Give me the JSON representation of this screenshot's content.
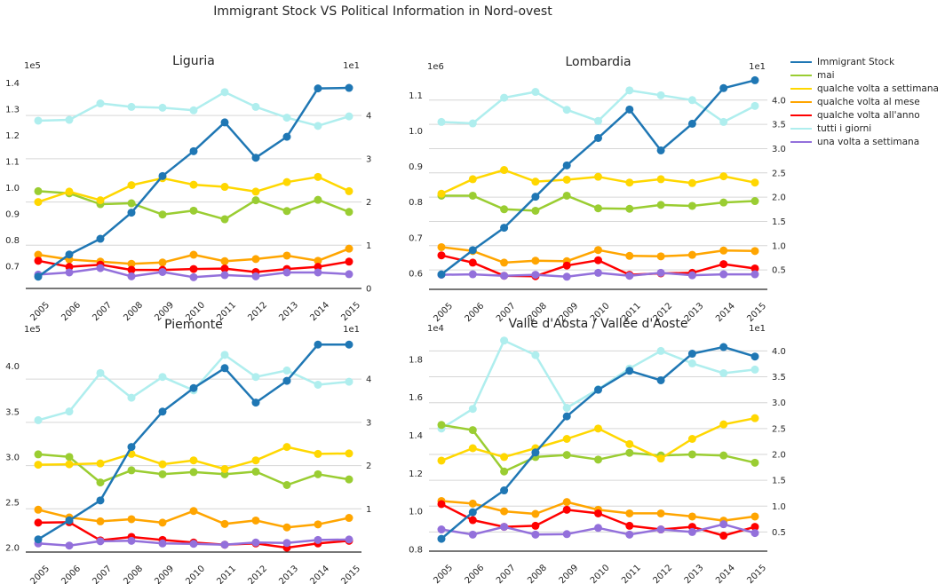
{
  "title": "Immigrant Stock VS Political Information in Nord-ovest",
  "legend": [
    {
      "label": "Immigrant Stock",
      "color": "#1f77b4"
    },
    {
      "label": "mai",
      "color": "#9acd32"
    },
    {
      "label": "qualche volta a settimana",
      "color": "#ffd700"
    },
    {
      "label": "qualche volta al mese",
      "color": "#ffa500"
    },
    {
      "label": "qualche volta all'anno",
      "color": "#ff0000"
    },
    {
      "label": "tutti i giorni",
      "color": "#afeeee"
    },
    {
      "label": "una volta a settimana",
      "color": "#9370db"
    }
  ],
  "chart_data": [
    {
      "type": "line",
      "title": "Liguria",
      "x": [
        "2005",
        "2006",
        "2007",
        "2008",
        "2009",
        "2010",
        "2011",
        "2012",
        "2013",
        "2014",
        "2015"
      ],
      "left_axis": {
        "exponent_label": "1e5",
        "ylim": [
          0.615,
          1.45
        ],
        "ticks": [
          0.7,
          0.8,
          0.9,
          1.0,
          1.1,
          1.2,
          1.3,
          1.4
        ],
        "tick_labels": [
          "0.7",
          "0.8",
          "0.9",
          "1.0",
          "1.1",
          "1.2",
          "1.3",
          "1.4"
        ]
      },
      "right_axis": {
        "exponent_label": "1e1",
        "ylim": [
          0,
          5.05
        ],
        "ticks": [
          0,
          1,
          2,
          3,
          4
        ],
        "tick_labels": [
          "0",
          "1",
          "2",
          "3",
          "4"
        ]
      },
      "left_series": [
        {
          "name": "Immigrant Stock",
          "color": "#1f77b4",
          "values": [
            0.66,
            0.745,
            0.805,
            0.905,
            1.045,
            1.14,
            1.25,
            1.115,
            1.195,
            1.38,
            1.382
          ]
        }
      ],
      "right_series": [
        {
          "name": "tutti i giorni",
          "color": "#afeeee",
          "values": [
            3.88,
            3.9,
            4.28,
            4.2,
            4.18,
            4.12,
            4.54,
            4.2,
            3.95,
            3.76,
            3.98
          ]
        },
        {
          "name": "mai",
          "color": "#9acd32",
          "values": [
            2.25,
            2.2,
            1.95,
            1.97,
            1.71,
            1.8,
            1.6,
            2.04,
            1.79,
            2.05,
            1.77
          ]
        },
        {
          "name": "qualche volta a settimana",
          "color": "#ffd700",
          "values": [
            2.0,
            2.24,
            2.04,
            2.39,
            2.55,
            2.4,
            2.35,
            2.24,
            2.46,
            2.58,
            2.25
          ]
        },
        {
          "name": "qualche volta al mese",
          "color": "#ffa500",
          "values": [
            0.78,
            0.67,
            0.62,
            0.57,
            0.6,
            0.78,
            0.63,
            0.68,
            0.76,
            0.64,
            0.92
          ]
        },
        {
          "name": "qualche volta all'anno",
          "color": "#ff0000",
          "values": [
            0.64,
            0.5,
            0.55,
            0.43,
            0.43,
            0.45,
            0.46,
            0.38,
            0.45,
            0.5,
            0.62
          ]
        },
        {
          "name": "una volta a settimana",
          "color": "#9370db",
          "values": [
            0.32,
            0.37,
            0.47,
            0.28,
            0.38,
            0.26,
            0.31,
            0.28,
            0.37,
            0.37,
            0.33
          ]
        }
      ]
    },
    {
      "type": "line",
      "title": "Lombardia",
      "x": [
        "2005",
        "2006",
        "2007",
        "2008",
        "2009",
        "2010",
        "2011",
        "2012",
        "2013",
        "2014",
        "2015"
      ],
      "left_axis": {
        "exponent_label": "1e6",
        "ylim": [
          0.555,
          1.168
        ],
        "ticks": [
          0.6,
          0.7,
          0.8,
          0.9,
          1.0,
          1.1
        ],
        "tick_labels": [
          "0.6",
          "0.7",
          "0.8",
          "0.9",
          "1.0",
          "1.1"
        ]
      },
      "right_axis": {
        "exponent_label": "1e1",
        "ylim": [
          0.1,
          4.6
        ],
        "ticks": [
          0.5,
          1.0,
          1.5,
          2.0,
          2.5,
          3.0,
          3.5,
          4.0
        ],
        "tick_labels": [
          "0.5",
          "1.0",
          "1.5",
          "2.0",
          "2.5",
          "3.0",
          "3.5",
          "4.0"
        ]
      },
      "left_series": [
        {
          "name": "Immigrant Stock",
          "color": "#1f77b4",
          "values": [
            0.597,
            0.665,
            0.728,
            0.815,
            0.903,
            0.98,
            1.06,
            0.945,
            1.02,
            1.12,
            1.142
          ]
        }
      ],
      "right_series": [
        {
          "name": "tutti i giorni",
          "color": "#afeeee",
          "values": [
            3.55,
            3.52,
            4.05,
            4.17,
            3.8,
            3.57,
            4.2,
            4.1,
            4.0,
            3.55,
            3.88
          ]
        },
        {
          "name": "mai",
          "color": "#9acd32",
          "values": [
            2.03,
            2.03,
            1.75,
            1.72,
            2.03,
            1.77,
            1.76,
            1.84,
            1.82,
            1.89,
            1.92
          ]
        },
        {
          "name": "qualche volta a settimana",
          "color": "#ffd700",
          "values": [
            2.07,
            2.37,
            2.56,
            2.32,
            2.36,
            2.42,
            2.3,
            2.37,
            2.29,
            2.43,
            2.3
          ]
        },
        {
          "name": "qualche volta al mese",
          "color": "#ffa500",
          "values": [
            0.97,
            0.89,
            0.65,
            0.69,
            0.68,
            0.91,
            0.79,
            0.78,
            0.81,
            0.9,
            0.89
          ]
        },
        {
          "name": "qualche volta all'anno",
          "color": "#ff0000",
          "values": [
            0.8,
            0.65,
            0.38,
            0.37,
            0.59,
            0.7,
            0.4,
            0.43,
            0.44,
            0.62,
            0.53
          ]
        },
        {
          "name": "una volta a settimana",
          "color": "#9370db",
          "values": [
            0.4,
            0.41,
            0.38,
            0.4,
            0.36,
            0.44,
            0.38,
            0.44,
            0.39,
            0.41,
            0.41
          ]
        }
      ]
    },
    {
      "type": "line",
      "title": "Piemonte",
      "x": [
        "2005",
        "2006",
        "2007",
        "2008",
        "2009",
        "2010",
        "2011",
        "2012",
        "2013",
        "2014",
        "2015"
      ],
      "left_axis": {
        "exponent_label": "1e5",
        "ylim": [
          1.95,
          4.36
        ],
        "ticks": [
          2.0,
          2.5,
          3.0,
          3.5,
          4.0
        ],
        "tick_labels": [
          "2.0",
          "2.5",
          "3.0",
          "3.5",
          "4.0"
        ]
      },
      "right_axis": {
        "exponent_label": "1e1",
        "ylim": [
          0,
          5.05
        ],
        "ticks": [
          1,
          2,
          3,
          4
        ],
        "tick_labels": [
          "1",
          "2",
          "3",
          "4"
        ]
      },
      "left_series": [
        {
          "name": "Immigrant Stock",
          "color": "#1f77b4",
          "values": [
            2.09,
            2.3,
            2.52,
            3.11,
            3.5,
            3.76,
            3.98,
            3.6,
            3.84,
            4.24,
            4.24
          ]
        }
      ],
      "right_series": [
        {
          "name": "tutti i giorni",
          "color": "#afeeee",
          "values": [
            3.05,
            3.25,
            4.14,
            3.57,
            4.05,
            3.74,
            4.56,
            4.05,
            4.2,
            3.87,
            3.94
          ]
        },
        {
          "name": "mai",
          "color": "#9acd32",
          "values": [
            2.26,
            2.2,
            1.61,
            1.89,
            1.8,
            1.85,
            1.8,
            1.86,
            1.55,
            1.8,
            1.68
          ]
        },
        {
          "name": "qualche volta a settimana",
          "color": "#ffd700",
          "values": [
            2.02,
            2.03,
            2.05,
            2.27,
            2.03,
            2.12,
            1.92,
            2.12,
            2.43,
            2.27,
            2.28
          ]
        },
        {
          "name": "qualche volta al mese",
          "color": "#ffa500",
          "values": [
            0.98,
            0.8,
            0.71,
            0.76,
            0.68,
            0.95,
            0.65,
            0.73,
            0.57,
            0.64,
            0.79
          ]
        },
        {
          "name": "qualche volta all'anno",
          "color": "#ff0000",
          "values": [
            0.68,
            0.69,
            0.27,
            0.35,
            0.28,
            0.22,
            0.17,
            0.2,
            0.1,
            0.2,
            0.26
          ]
        },
        {
          "name": "una volta a settimana",
          "color": "#9370db",
          "values": [
            0.2,
            0.15,
            0.25,
            0.26,
            0.2,
            0.19,
            0.17,
            0.22,
            0.21,
            0.28,
            0.29
          ]
        }
      ]
    },
    {
      "type": "line",
      "title": "Valle d'Aosta / Vallée d'Aoste",
      "x": [
        "2005",
        "2006",
        "2007",
        "2008",
        "2009",
        "2010",
        "2011",
        "2012",
        "2013",
        "2014",
        "2015"
      ],
      "left_axis": {
        "exponent_label": "1e4",
        "ylim": [
          0.79,
          1.94
        ],
        "ticks": [
          0.8,
          1.0,
          1.2,
          1.4,
          1.6,
          1.8
        ],
        "tick_labels": [
          "0.8",
          "1.0",
          "1.2",
          "1.4",
          "1.6",
          "1.8"
        ]
      },
      "right_axis": {
        "exponent_label": "1e1",
        "ylim": [
          0.13,
          4.35
        ],
        "ticks": [
          0.5,
          1.0,
          1.5,
          2.0,
          2.5,
          3.0,
          3.5,
          4.0
        ],
        "tick_labels": [
          "0.5",
          "1.0",
          "1.5",
          "2.0",
          "2.5",
          "3.0",
          "3.5",
          "4.0"
        ]
      },
      "left_series": [
        {
          "name": "Immigrant Stock",
          "color": "#1f77b4",
          "values": [
            0.855,
            0.995,
            1.11,
            1.31,
            1.5,
            1.64,
            1.74,
            1.69,
            1.83,
            1.865,
            1.815
          ]
        }
      ],
      "right_series": [
        {
          "name": "tutti i giorni",
          "color": "#afeeee",
          "values": [
            2.5,
            2.88,
            4.2,
            3.92,
            2.9,
            3.26,
            3.66,
            4.0,
            3.76,
            3.57,
            3.64
          ]
        },
        {
          "name": "mai",
          "color": "#9acd32",
          "values": [
            2.57,
            2.47,
            1.67,
            1.95,
            1.99,
            1.9,
            2.03,
            1.98,
            2.0,
            1.98,
            1.84
          ]
        },
        {
          "name": "qualche volta a settimana",
          "color": "#ffd700",
          "values": [
            1.88,
            2.12,
            1.95,
            2.12,
            2.3,
            2.5,
            2.2,
            1.92,
            2.3,
            2.58,
            2.7
          ]
        },
        {
          "name": "qualche volta al mese",
          "color": "#ffa500",
          "values": [
            1.1,
            1.05,
            0.9,
            0.85,
            1.08,
            0.93,
            0.86,
            0.86,
            0.8,
            0.72,
            0.8
          ]
        },
        {
          "name": "qualche volta all'anno",
          "color": "#ff0000",
          "values": [
            1.04,
            0.73,
            0.6,
            0.62,
            0.93,
            0.86,
            0.62,
            0.55,
            0.6,
            0.43,
            0.6
          ]
        },
        {
          "name": "una volta a settimana",
          "color": "#9370db",
          "values": [
            0.55,
            0.45,
            0.6,
            0.45,
            0.46,
            0.58,
            0.45,
            0.55,
            0.5,
            0.65,
            0.48
          ]
        }
      ]
    }
  ]
}
